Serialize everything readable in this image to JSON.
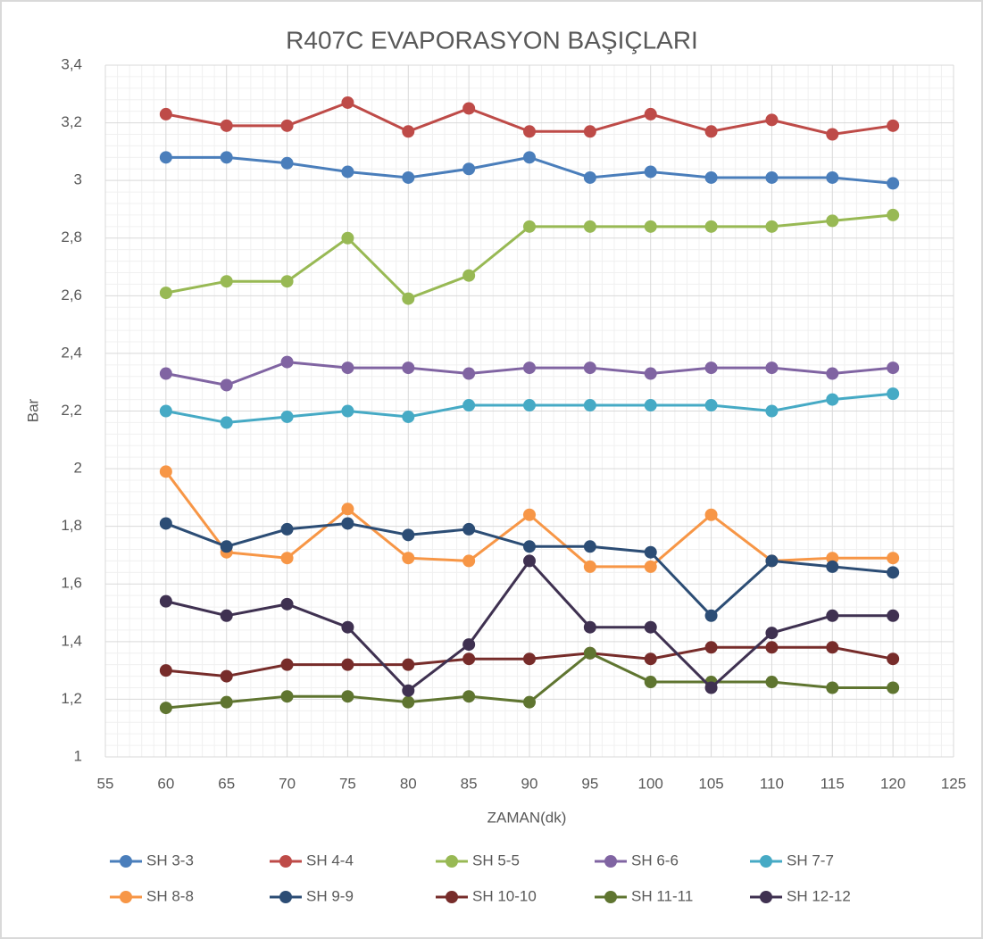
{
  "chart_data": {
    "type": "line",
    "title": "R407C EVAPORASYON BAŞIÇLARI",
    "x_label": "ZAMAN(dk)",
    "y_label": "Bar",
    "x": [
      60,
      65,
      70,
      75,
      80,
      85,
      90,
      95,
      100,
      105,
      110,
      115,
      120
    ],
    "xlim": [
      55,
      125
    ],
    "xticks": [
      55,
      60,
      65,
      70,
      75,
      80,
      85,
      90,
      95,
      100,
      105,
      110,
      115,
      120,
      125
    ],
    "ylim": [
      1,
      3.4
    ],
    "yticks": [
      1,
      {
        "value": 1.2,
        "label": "1,2"
      },
      {
        "value": 1.4,
        "label": "1,4"
      },
      {
        "value": 1.6,
        "label": "1,6"
      },
      {
        "value": 1.8,
        "label": "1,8"
      },
      2,
      {
        "value": 2.2,
        "label": "2,2"
      },
      {
        "value": 2.4,
        "label": "2,4"
      },
      {
        "value": 2.6,
        "label": "2,6"
      },
      {
        "value": 2.8,
        "label": "2,8"
      },
      3,
      {
        "value": 3.2,
        "label": "3,2"
      },
      {
        "value": 3.4,
        "label": "3,4"
      }
    ],
    "grid": true,
    "minor_grid": true,
    "legend": "bottom",
    "series": [
      {
        "name": "SH 3-3",
        "color": "#4a7ebb",
        "values": [
          3.08,
          3.08,
          3.06,
          3.03,
          3.01,
          3.04,
          3.08,
          3.01,
          3.03,
          3.01,
          3.01,
          3.01,
          2.99
        ]
      },
      {
        "name": "SH 4-4",
        "color": "#be4b48",
        "values": [
          3.23,
          3.19,
          3.19,
          3.27,
          3.17,
          3.25,
          3.17,
          3.17,
          3.23,
          3.17,
          3.21,
          3.16,
          3.19
        ]
      },
      {
        "name": "SH 5-5",
        "color": "#98b954",
        "values": [
          2.61,
          2.65,
          2.65,
          2.8,
          2.59,
          2.67,
          2.84,
          2.84,
          2.84,
          2.84,
          2.84,
          2.86,
          2.88
        ]
      },
      {
        "name": "SH 6-6",
        "color": "#8064a2",
        "values": [
          2.33,
          2.29,
          2.37,
          2.35,
          2.35,
          2.33,
          2.35,
          2.35,
          2.33,
          2.35,
          2.35,
          2.33,
          2.35
        ]
      },
      {
        "name": "SH 7-7",
        "color": "#46aac5",
        "values": [
          2.2,
          2.16,
          2.18,
          2.2,
          2.18,
          2.22,
          2.22,
          2.22,
          2.22,
          2.22,
          2.2,
          2.24,
          2.26
        ]
      },
      {
        "name": "SH 8-8",
        "color": "#f79646",
        "values": [
          1.99,
          1.71,
          1.69,
          1.86,
          1.69,
          1.68,
          1.84,
          1.66,
          1.66,
          1.84,
          1.68,
          1.69,
          1.69
        ]
      },
      {
        "name": "SH 9-9",
        "color": "#2c4d75",
        "values": [
          1.81,
          1.73,
          1.79,
          1.81,
          1.77,
          1.79,
          1.73,
          1.73,
          1.71,
          1.49,
          1.68,
          1.66,
          1.64
        ]
      },
      {
        "name": "SH 10-10",
        "color": "#772c2a",
        "values": [
          1.3,
          1.28,
          1.32,
          1.32,
          1.32,
          1.34,
          1.34,
          1.36,
          1.34,
          1.38,
          1.38,
          1.38,
          1.34
        ]
      },
      {
        "name": "SH 11-11",
        "color": "#5f7530",
        "values": [
          1.17,
          1.19,
          1.21,
          1.21,
          1.19,
          1.21,
          1.19,
          1.36,
          1.26,
          1.26,
          1.26,
          1.24,
          1.24
        ]
      },
      {
        "name": "SH 12-12",
        "color": "#3f3151",
        "values": [
          1.54,
          1.49,
          1.53,
          1.45,
          1.23,
          1.39,
          1.68,
          1.45,
          1.45,
          1.24,
          1.43,
          1.49,
          1.49
        ]
      }
    ]
  }
}
